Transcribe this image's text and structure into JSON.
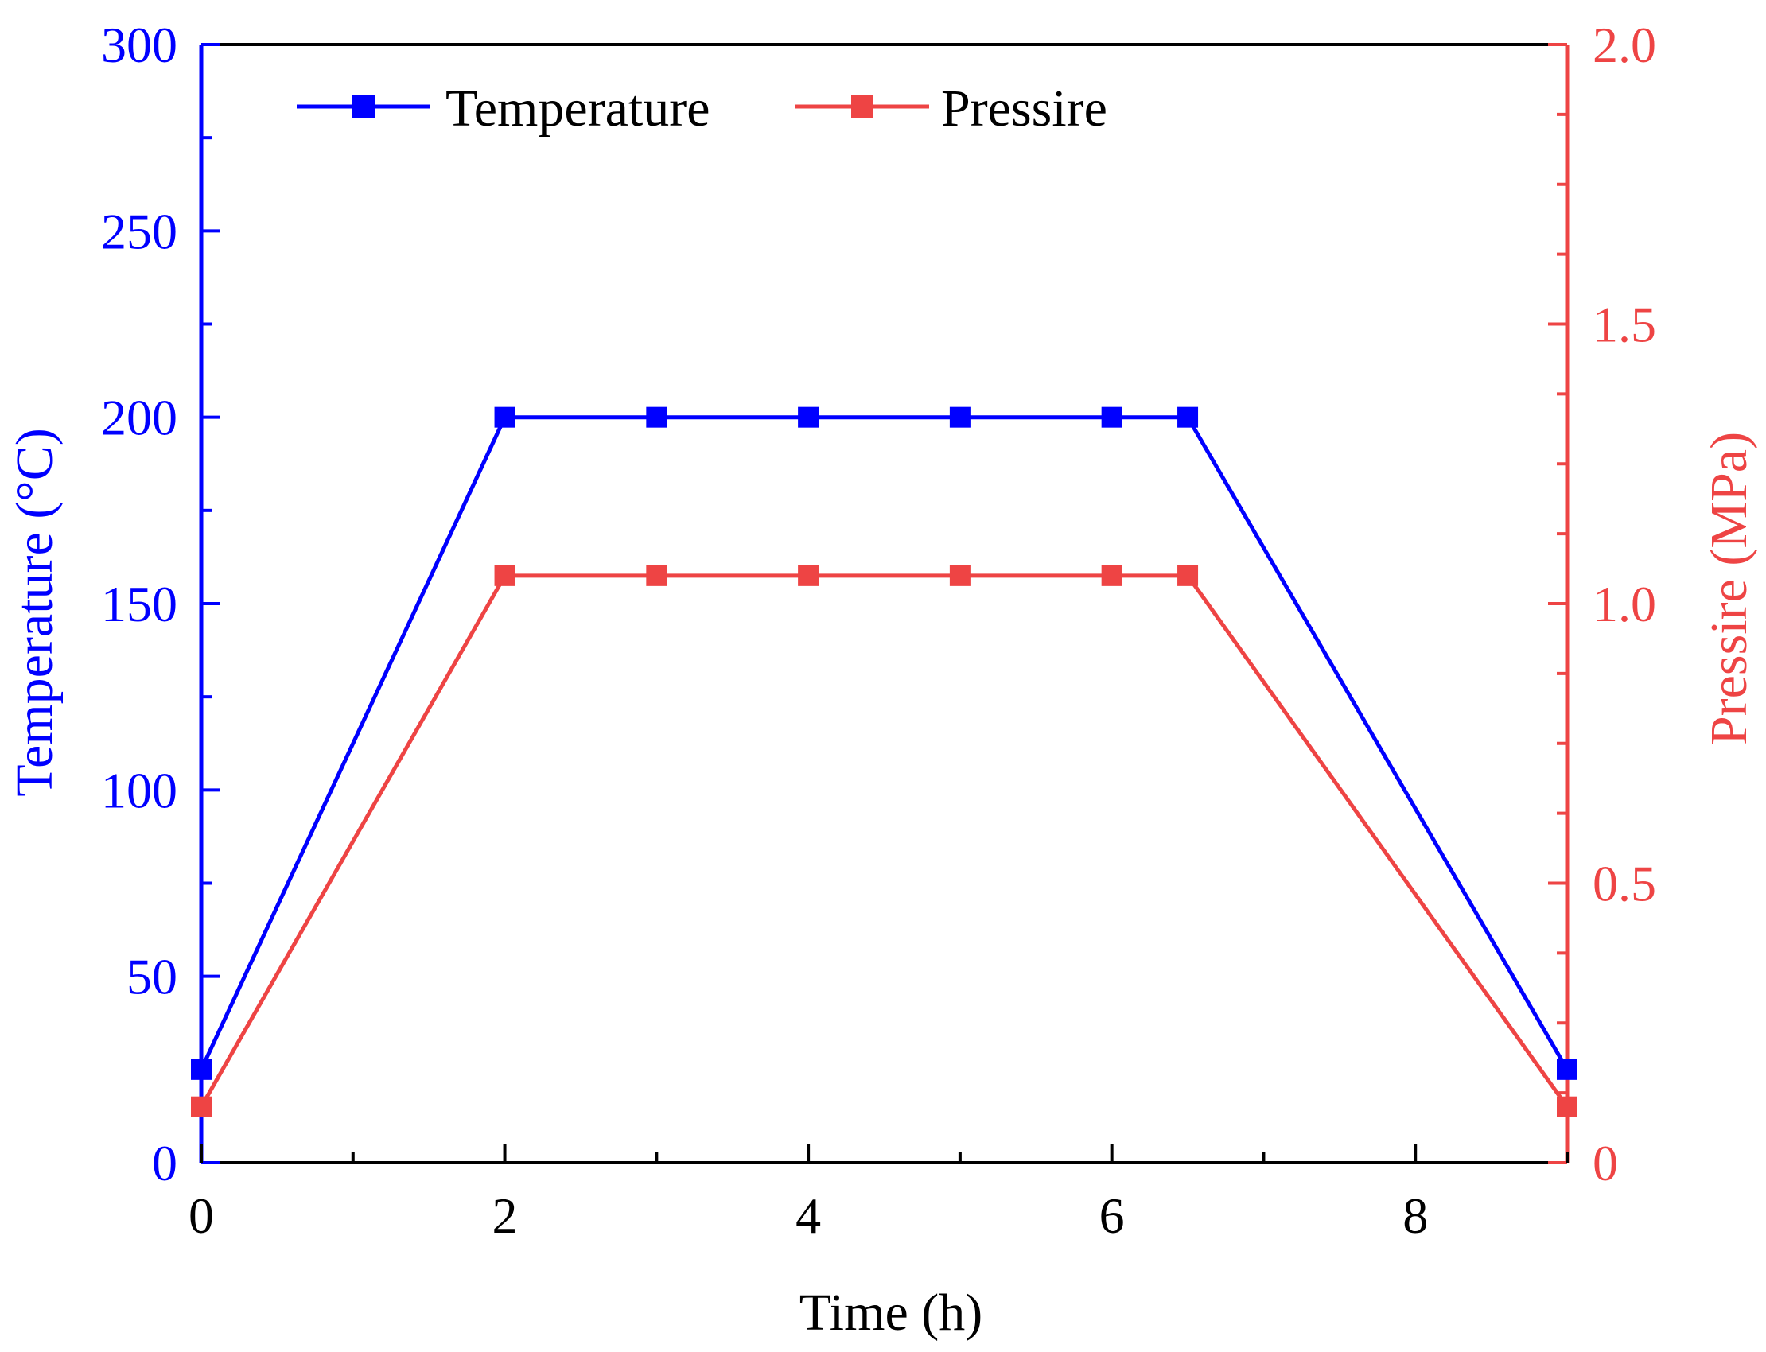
{
  "chart_data": {
    "type": "line",
    "title": "",
    "xlabel": "Time (h)",
    "ylabel_left": "Temperature (°C)",
    "ylabel_right": "Pressire (MPa)",
    "xlim": [
      0,
      9
    ],
    "ylim_left": [
      0,
      300
    ],
    "ylim_right": [
      0,
      2.0
    ],
    "x_ticks": [
      "0",
      "2",
      "4",
      "6",
      "8"
    ],
    "y_left_ticks": [
      "0",
      "50",
      "100",
      "150",
      "200",
      "250",
      "300"
    ],
    "y_right_ticks": [
      "0",
      "0.5",
      "1.0",
      "1.5",
      "2.0"
    ],
    "legend_position": "top-left",
    "series": [
      {
        "name": "Temperature",
        "axis": "left",
        "color": "#0000ff",
        "x": [
          0,
          2,
          3,
          4,
          5,
          6,
          6.5,
          9
        ],
        "y": [
          25,
          200,
          200,
          200,
          200,
          200,
          200,
          25
        ]
      },
      {
        "name": "Pressire",
        "axis": "right",
        "color": "#ee4444",
        "x": [
          0,
          2,
          3,
          4,
          5,
          6,
          6.5,
          9
        ],
        "y": [
          0.1,
          1.05,
          1.05,
          1.05,
          1.05,
          1.05,
          1.05,
          0.1
        ]
      }
    ],
    "colors": {
      "left_axis": "#0000ff",
      "right_axis": "#ee4444",
      "frame": "#000000"
    }
  }
}
